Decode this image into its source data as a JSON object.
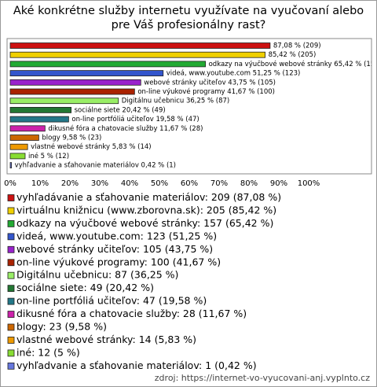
{
  "chart_data": {
    "type": "hbar",
    "title": "Aké konkrétne služby internetu využívate na vyučovaní alebo pre Váš profesionálny rast?",
    "categories": [
      "vyhľadávanie a sťahovanie materiálov: 209 (87,08 %)",
      "virtuálnu knižnicu (www.zborovna.sk): 205 (85,42 %)",
      "odkazy na výučbové webové stránky: 157 (65,42 %)",
      "videá, www.youtube.com: 123 (51,25 %)",
      "webové stránky učiteľov: 105 (43,75 %)",
      "on-line výukové programy: 100 (41,67 %)",
      "Digitálnu učebnicu: 87 (36,25 %)",
      "sociálne siete: 49 (20,42 %)",
      "on-line portfóliá učiteľov: 47 (19,58 %)",
      "dikusné fóra a chatovacie služby: 28 (11,67 %)",
      "blogy: 23 (9,58 %)",
      "vlastné webové stránky: 14 (5,83 %)",
      "iné: 12 (5 %)",
      "vyhľadvanie a sťahovanie materiálov: 1 (0,42 %)"
    ],
    "values": [
      87.08,
      85.42,
      65.42,
      51.25,
      43.75,
      41.67,
      36.25,
      20.42,
      19.58,
      11.67,
      9.58,
      5.83,
      5,
      0.42
    ],
    "value_labels": [
      "87,08 % (209)",
      "85,42 % (205)",
      "odkazy na výučbové webové stránky 65,42 % (157",
      "videá, www.youtube.com 51,25 % (123)",
      "webové stránky učiteľov 43,75 % (105)",
      "on-line výukové programy 41,67 % (100)",
      "Digitálnu učebnicu 36,25 % (87)",
      "sociálne siete 20,42 % (49)",
      "on-line portfóliá učiteľov 19,58 % (47)",
      "dikusné fóra a chatovacie služby 11,67 % (28)",
      "blogy 9,58 % (23)",
      "vlastné webové stránky 5,83 % (14)",
      "iné 5 % (12)",
      "vyhľadvanie a sťahovanie materiálov 0,42 % (1)"
    ],
    "colors": [
      "#cc1111",
      "#f0d000",
      "#22aa33",
      "#3355cc",
      "#9922cc",
      "#aa2200",
      "#99ee66",
      "#227733",
      "#227788",
      "#cc22aa",
      "#cc6600",
      "#ee9900",
      "#88dd33",
      "#6677dd"
    ],
    "xlim": [
      0,
      100
    ],
    "xticks": [
      {
        "value": 0,
        "label": "0%"
      },
      {
        "value": 10,
        "label": "10%"
      },
      {
        "value": 20,
        "label": "20%"
      },
      {
        "value": 30,
        "label": "30%"
      },
      {
        "value": 40,
        "label": "40%"
      },
      {
        "value": 50,
        "label": "50%"
      },
      {
        "value": 60,
        "label": "60%"
      },
      {
        "value": 70,
        "label": "70%"
      },
      {
        "value": 80,
        "label": "80%"
      },
      {
        "value": 90,
        "label": "90%"
      },
      {
        "value": 100,
        "label": "100%"
      }
    ],
    "grid": false,
    "source": "zdroj: https://internet-vo-vyucovani-anj.vyplnto.cz"
  }
}
